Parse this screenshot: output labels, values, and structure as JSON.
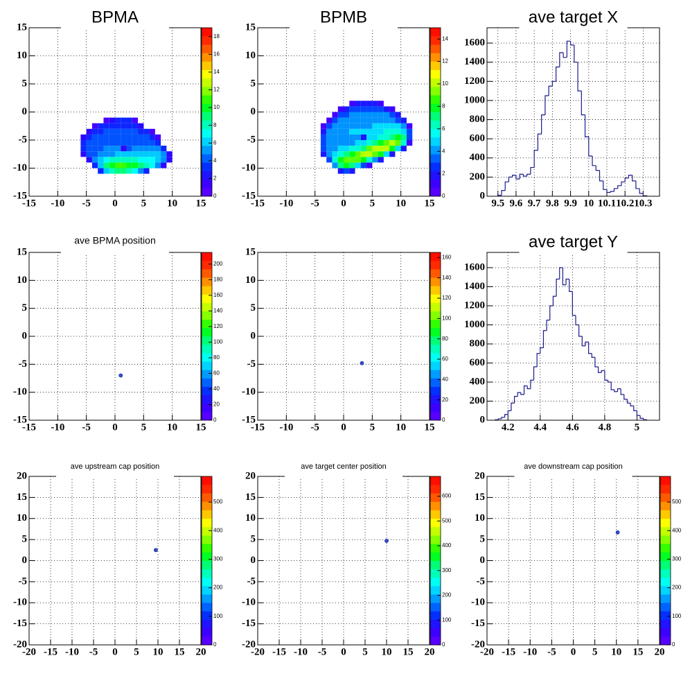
{
  "palette": [
    "#6600ff",
    "#3300ff",
    "#0033ff",
    "#0099ff",
    "#00ffff",
    "#00ff99",
    "#00ff00",
    "#99ff00",
    "#ffff00",
    "#ff9900",
    "#ff3300",
    "#ff0000"
  ],
  "chart_data": [
    {
      "type": "heatmap",
      "title": "BPMA",
      "xlim": [
        -15,
        15
      ],
      "ylim": [
        -15,
        15
      ],
      "xticks": [
        -15,
        -10,
        -5,
        0,
        5,
        10,
        15
      ],
      "yticks": [
        -15,
        -10,
        -5,
        0,
        5,
        10,
        15
      ],
      "grid": true,
      "zlim": [
        0,
        19
      ],
      "zticks": [
        0,
        2,
        4,
        6,
        8,
        10,
        12,
        14,
        16,
        18
      ],
      "xbins": [
        -6,
        -5,
        -4,
        -3,
        -2,
        -1,
        0,
        1,
        2,
        3,
        4,
        5,
        6,
        7,
        8,
        9,
        10
      ],
      "ybins": [
        -11,
        -10,
        -9,
        -8,
        -7,
        -6,
        -5,
        -4,
        -3,
        -2,
        -1
      ],
      "z": [
        [
          0,
          0,
          0,
          3,
          6,
          8,
          9,
          9,
          8,
          7,
          5,
          3,
          0,
          0,
          0,
          0
        ],
        [
          0,
          0,
          3,
          6,
          9,
          10,
          11,
          11,
          10,
          10,
          9,
          8,
          7,
          5,
          2,
          0
        ],
        [
          0,
          2,
          5,
          6,
          7,
          8,
          8,
          8,
          8,
          8,
          7,
          7,
          7,
          6,
          5,
          2
        ],
        [
          2,
          4,
          4,
          5,
          5,
          5,
          6,
          6,
          6,
          6,
          6,
          6,
          6,
          6,
          5,
          2
        ],
        [
          3,
          4,
          4,
          4,
          5,
          5,
          5,
          2,
          4,
          5,
          5,
          5,
          5,
          5,
          3,
          0
        ],
        [
          3,
          4,
          4,
          4,
          4,
          4,
          4,
          4,
          4,
          4,
          4,
          4,
          4,
          3,
          0,
          0
        ],
        [
          2,
          3,
          4,
          4,
          4,
          4,
          4,
          4,
          4,
          4,
          4,
          4,
          3,
          1,
          0,
          0
        ],
        [
          0,
          2,
          3,
          3,
          4,
          4,
          4,
          4,
          4,
          4,
          3,
          3,
          1,
          0,
          0,
          0
        ],
        [
          0,
          0,
          1,
          3,
          3,
          3,
          3,
          3,
          3,
          3,
          2,
          0,
          0,
          0,
          0,
          0
        ],
        [
          0,
          0,
          0,
          0,
          1,
          2,
          3,
          3,
          3,
          1,
          0,
          0,
          0,
          0,
          0,
          0
        ]
      ]
    },
    {
      "type": "heatmap",
      "title": "BPMB",
      "xlim": [
        -15,
        15
      ],
      "ylim": [
        -15,
        15
      ],
      "xticks": [
        -15,
        -10,
        -5,
        0,
        5,
        10,
        15
      ],
      "yticks": [
        -15,
        -10,
        -5,
        0,
        5,
        10,
        15
      ],
      "grid": true,
      "zlim": [
        0,
        15
      ],
      "zticks": [
        0,
        2,
        4,
        6,
        8,
        10,
        12,
        14
      ],
      "xbins": [
        -4,
        -3,
        -2,
        -1,
        0,
        1,
        2,
        3,
        4,
        5,
        6,
        7,
        8,
        9,
        10,
        11,
        12
      ],
      "ybins": [
        -11,
        -10,
        -9,
        -8,
        -7,
        -6,
        -5,
        -4,
        -3,
        -2,
        -1,
        0,
        1,
        2
      ],
      "z": [
        [
          0,
          0,
          0,
          2,
          3,
          2,
          0,
          0,
          0,
          0,
          0,
          0,
          0,
          0,
          0,
          0
        ],
        [
          0,
          0,
          4,
          7,
          8,
          7,
          5,
          3,
          1,
          0,
          0,
          0,
          0,
          0,
          0,
          0
        ],
        [
          0,
          3,
          6,
          8,
          9,
          9,
          9,
          8,
          6,
          4,
          2,
          0,
          0,
          0,
          0,
          0
        ],
        [
          2,
          4,
          5,
          6,
          7,
          8,
          9,
          10,
          10,
          9,
          8,
          5,
          2,
          0,
          0,
          0
        ],
        [
          3,
          4,
          4,
          5,
          5,
          6,
          6,
          7,
          9,
          10,
          10,
          10,
          8,
          5,
          2,
          0
        ],
        [
          3,
          4,
          4,
          4,
          4,
          4,
          5,
          5,
          6,
          7,
          8,
          9,
          10,
          9,
          6,
          1
        ],
        [
          3,
          4,
          4,
          4,
          4,
          4,
          4,
          2,
          5,
          5,
          6,
          6,
          7,
          8,
          7,
          3
        ],
        [
          2,
          4,
          4,
          4,
          4,
          5,
          5,
          5,
          5,
          5,
          5,
          6,
          6,
          6,
          5,
          3
        ],
        [
          1,
          3,
          4,
          4,
          4,
          4,
          4,
          4,
          4,
          5,
          5,
          5,
          5,
          5,
          4,
          1
        ],
        [
          0,
          1,
          3,
          4,
          4,
          4,
          4,
          4,
          4,
          4,
          4,
          4,
          4,
          3,
          2,
          0
        ],
        [
          0,
          0,
          1,
          3,
          3,
          4,
          4,
          4,
          4,
          4,
          4,
          4,
          3,
          2,
          0,
          0
        ],
        [
          0,
          0,
          0,
          1,
          2,
          3,
          3,
          3,
          3,
          3,
          3,
          2,
          1,
          0,
          0,
          0
        ],
        [
          0,
          0,
          0,
          0,
          0,
          1,
          2,
          2,
          2,
          2,
          1,
          0,
          0,
          0,
          0,
          0
        ]
      ]
    },
    {
      "type": "histogram",
      "title": "ave target X",
      "xlim": [
        9.44,
        10.39
      ],
      "ylim": [
        0,
        1760
      ],
      "xticks": [
        9.5,
        9.6,
        9.7,
        9.8,
        9.9,
        10,
        10.1,
        10.2,
        10.3
      ],
      "yticks": [
        0,
        200,
        400,
        600,
        800,
        1000,
        1200,
        1400,
        1600
      ],
      "grid": true,
      "color": "#1a1a8c",
      "bins": [
        9.5,
        9.52,
        9.54,
        9.56,
        9.58,
        9.6,
        9.62,
        9.64,
        9.66,
        9.68,
        9.7,
        9.72,
        9.74,
        9.76,
        9.78,
        9.8,
        9.82,
        9.84,
        9.86,
        9.88,
        9.9,
        9.92,
        9.94,
        9.96,
        9.98,
        10,
        10.02,
        10.04,
        10.06,
        10.08,
        10.1,
        10.12,
        10.14,
        10.16,
        10.18,
        10.2,
        10.22,
        10.24,
        10.26,
        10.28,
        10.3,
        10.32
      ],
      "values": [
        10,
        60,
        150,
        200,
        220,
        180,
        230,
        210,
        230,
        300,
        480,
        650,
        850,
        1050,
        1150,
        1200,
        1350,
        1500,
        1450,
        1620,
        1580,
        1400,
        1100,
        850,
        620,
        420,
        320,
        270,
        160,
        70,
        40,
        50,
        80,
        110,
        150,
        190,
        220,
        160,
        80,
        30,
        5
      ]
    },
    {
      "type": "scatter",
      "title": "ave BPMA position",
      "xlim": [
        -15,
        15
      ],
      "ylim": [
        -15,
        15
      ],
      "xticks": [
        -15,
        -10,
        -5,
        0,
        5,
        10,
        15
      ],
      "yticks": [
        -15,
        -10,
        -5,
        0,
        5,
        10,
        15
      ],
      "grid": true,
      "color": "#3050d0",
      "zlim": [
        0,
        215
      ],
      "zticks": [
        0,
        20,
        40,
        60,
        80,
        100,
        120,
        140,
        160,
        180,
        200
      ],
      "x": [
        1
      ],
      "y": [
        -7
      ]
    },
    {
      "type": "scatter",
      "xlim": [
        -15,
        15
      ],
      "ylim": [
        -15,
        15
      ],
      "xticks": [
        -15,
        -10,
        -5,
        0,
        5,
        10,
        15
      ],
      "yticks": [
        -15,
        -10,
        -5,
        0,
        5,
        10,
        15
      ],
      "grid": true,
      "color": "#3050d0",
      "zlim": [
        0,
        165
      ],
      "zticks": [
        0,
        20,
        40,
        60,
        80,
        100,
        120,
        140,
        160
      ],
      "x": [
        3.2
      ],
      "y": [
        -4.8
      ]
    },
    {
      "type": "histogram",
      "title": "ave target Y",
      "xlim": [
        4.07,
        5.14
      ],
      "ylim": [
        0,
        1760
      ],
      "xticks": [
        4.2,
        4.4,
        4.6,
        4.8,
        5
      ],
      "yticks": [
        0,
        200,
        400,
        600,
        800,
        1000,
        1200,
        1400,
        1600
      ],
      "grid": true,
      "color": "#1a1a8c",
      "bins": [
        4.12,
        4.14,
        4.16,
        4.18,
        4.2,
        4.22,
        4.24,
        4.26,
        4.28,
        4.3,
        4.32,
        4.34,
        4.36,
        4.38,
        4.4,
        4.42,
        4.44,
        4.46,
        4.48,
        4.5,
        4.52,
        4.54,
        4.56,
        4.58,
        4.6,
        4.62,
        4.64,
        4.66,
        4.68,
        4.7,
        4.72,
        4.74,
        4.76,
        4.78,
        4.8,
        4.82,
        4.84,
        4.86,
        4.88,
        4.9,
        4.92,
        4.94,
        4.96,
        4.98,
        5,
        5.02,
        5.04,
        5.06
      ],
      "values": [
        5,
        15,
        30,
        60,
        100,
        180,
        250,
        290,
        270,
        360,
        330,
        420,
        560,
        700,
        760,
        940,
        1050,
        1200,
        1300,
        1480,
        1600,
        1420,
        1480,
        1350,
        1100,
        1000,
        880,
        780,
        820,
        700,
        660,
        560,
        500,
        520,
        420,
        400,
        320,
        300,
        330,
        270,
        220,
        180,
        150,
        100,
        50,
        20,
        5
      ]
    },
    {
      "type": "scatter",
      "title": "ave upstream cap position",
      "xlim": [
        -20,
        20
      ],
      "ylim": [
        -20,
        20
      ],
      "xticks": [
        -20,
        -15,
        -10,
        -5,
        0,
        5,
        10,
        15,
        20
      ],
      "yticks": [
        -20,
        -15,
        -10,
        -5,
        0,
        5,
        10,
        15,
        20
      ],
      "grid": true,
      "color": "#3050d0",
      "zlim": [
        0,
        590
      ],
      "zticks": [
        0,
        100,
        200,
        300,
        400,
        500
      ],
      "x": [
        9.5
      ],
      "y": [
        2.5
      ]
    },
    {
      "type": "scatter",
      "title": "ave target center  position",
      "xlim": [
        -20,
        20
      ],
      "ylim": [
        -20,
        20
      ],
      "xticks": [
        -20,
        -15,
        -10,
        -5,
        0,
        5,
        10,
        15,
        20
      ],
      "yticks": [
        -20,
        -15,
        -10,
        -5,
        0,
        5,
        10,
        15,
        20
      ],
      "grid": true,
      "color": "#3050d0",
      "zlim": [
        0,
        680
      ],
      "zticks": [
        0,
        100,
        200,
        300,
        400,
        500,
        600
      ],
      "x": [
        10
      ],
      "y": [
        4.7
      ]
    },
    {
      "type": "scatter",
      "title": "ave downstream cap position",
      "xlim": [
        -20,
        20
      ],
      "ylim": [
        -20,
        20
      ],
      "xticks": [
        -20,
        -15,
        -10,
        -5,
        0,
        5,
        10,
        15,
        20
      ],
      "yticks": [
        -20,
        -15,
        -10,
        -5,
        0,
        5,
        10,
        15,
        20
      ],
      "grid": true,
      "color": "#3050d0",
      "zlim": [
        0,
        590
      ],
      "zticks": [
        0,
        100,
        200,
        300,
        400,
        500
      ],
      "x": [
        10.3
      ],
      "y": [
        6.7
      ]
    }
  ]
}
